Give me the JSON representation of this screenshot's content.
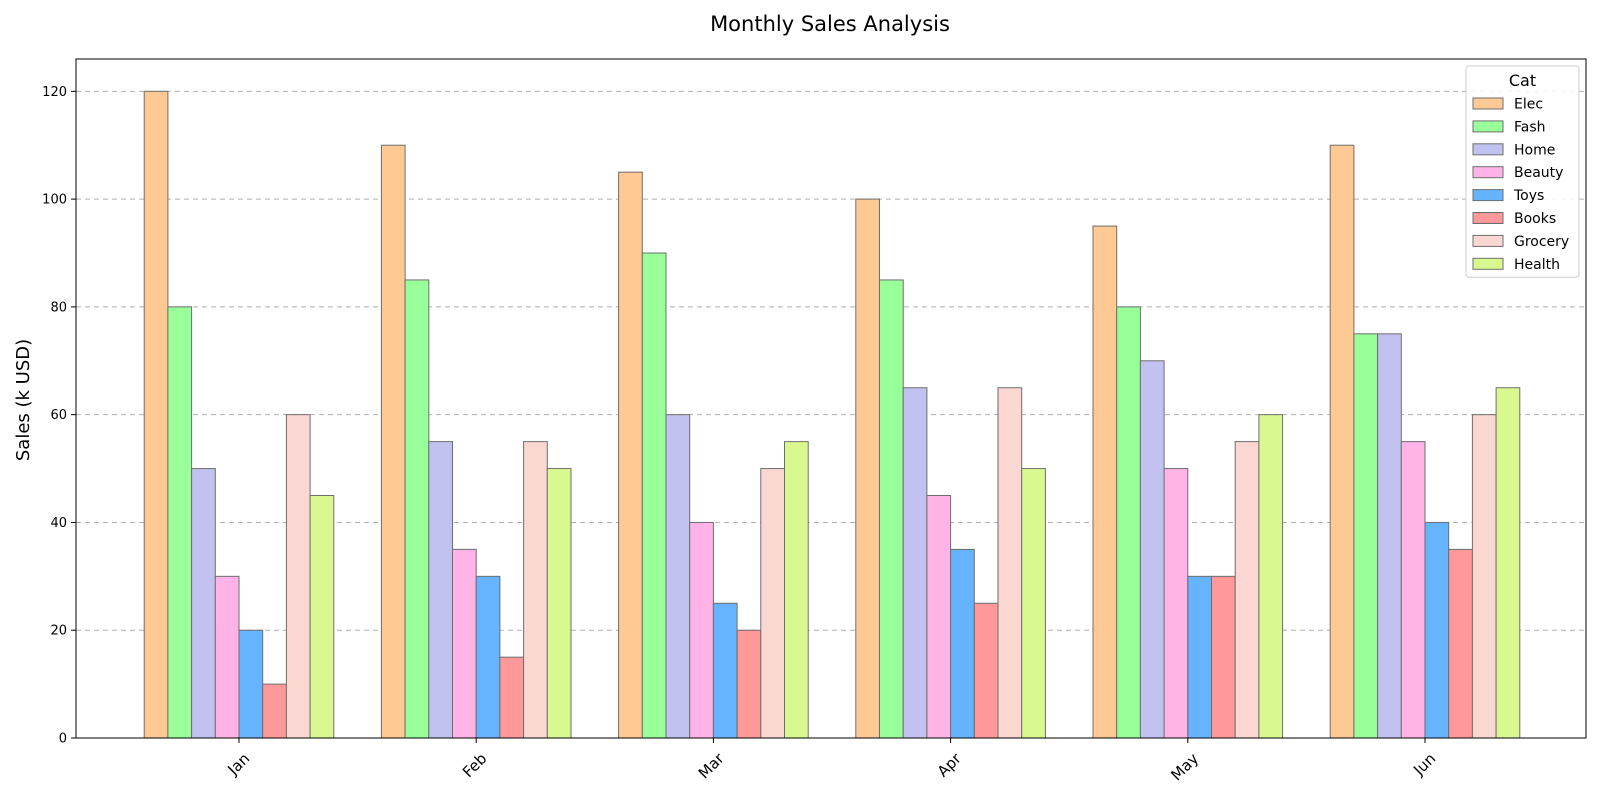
{
  "chart_data": {
    "type": "bar",
    "title": "Monthly Sales Analysis",
    "xlabel": "",
    "ylabel": "Sales (k USD)",
    "ylim": [
      0,
      126
    ],
    "yticks": [
      0,
      20,
      40,
      60,
      80,
      100,
      120
    ],
    "grid": "y-dashed",
    "legend_title": "Cat",
    "legend_position": "top-right",
    "categories": [
      "Jan",
      "Feb",
      "Mar",
      "Apr",
      "May",
      "Jun"
    ],
    "series": [
      {
        "name": "Elec",
        "color": "#ffc994",
        "values": [
          120,
          110,
          105,
          100,
          95,
          110
        ]
      },
      {
        "name": "Fash",
        "color": "#99ff99",
        "values": [
          80,
          85,
          90,
          85,
          80,
          75
        ]
      },
      {
        "name": "Home",
        "color": "#c2c2f0",
        "values": [
          50,
          55,
          60,
          65,
          70,
          75
        ]
      },
      {
        "name": "Beauty",
        "color": "#ffb3e6",
        "values": [
          30,
          35,
          40,
          45,
          50,
          55
        ]
      },
      {
        "name": "Toys",
        "color": "#66b3ff",
        "values": [
          20,
          30,
          25,
          35,
          30,
          40
        ]
      },
      {
        "name": "Books",
        "color": "#ff9999",
        "values": [
          10,
          15,
          20,
          25,
          30,
          35
        ]
      },
      {
        "name": "Grocery",
        "color": "#fad7d1",
        "values": [
          60,
          55,
          50,
          65,
          55,
          60
        ]
      },
      {
        "name": "Health",
        "color": "#d9f990",
        "values": [
          45,
          50,
          55,
          50,
          60,
          65
        ]
      }
    ]
  }
}
